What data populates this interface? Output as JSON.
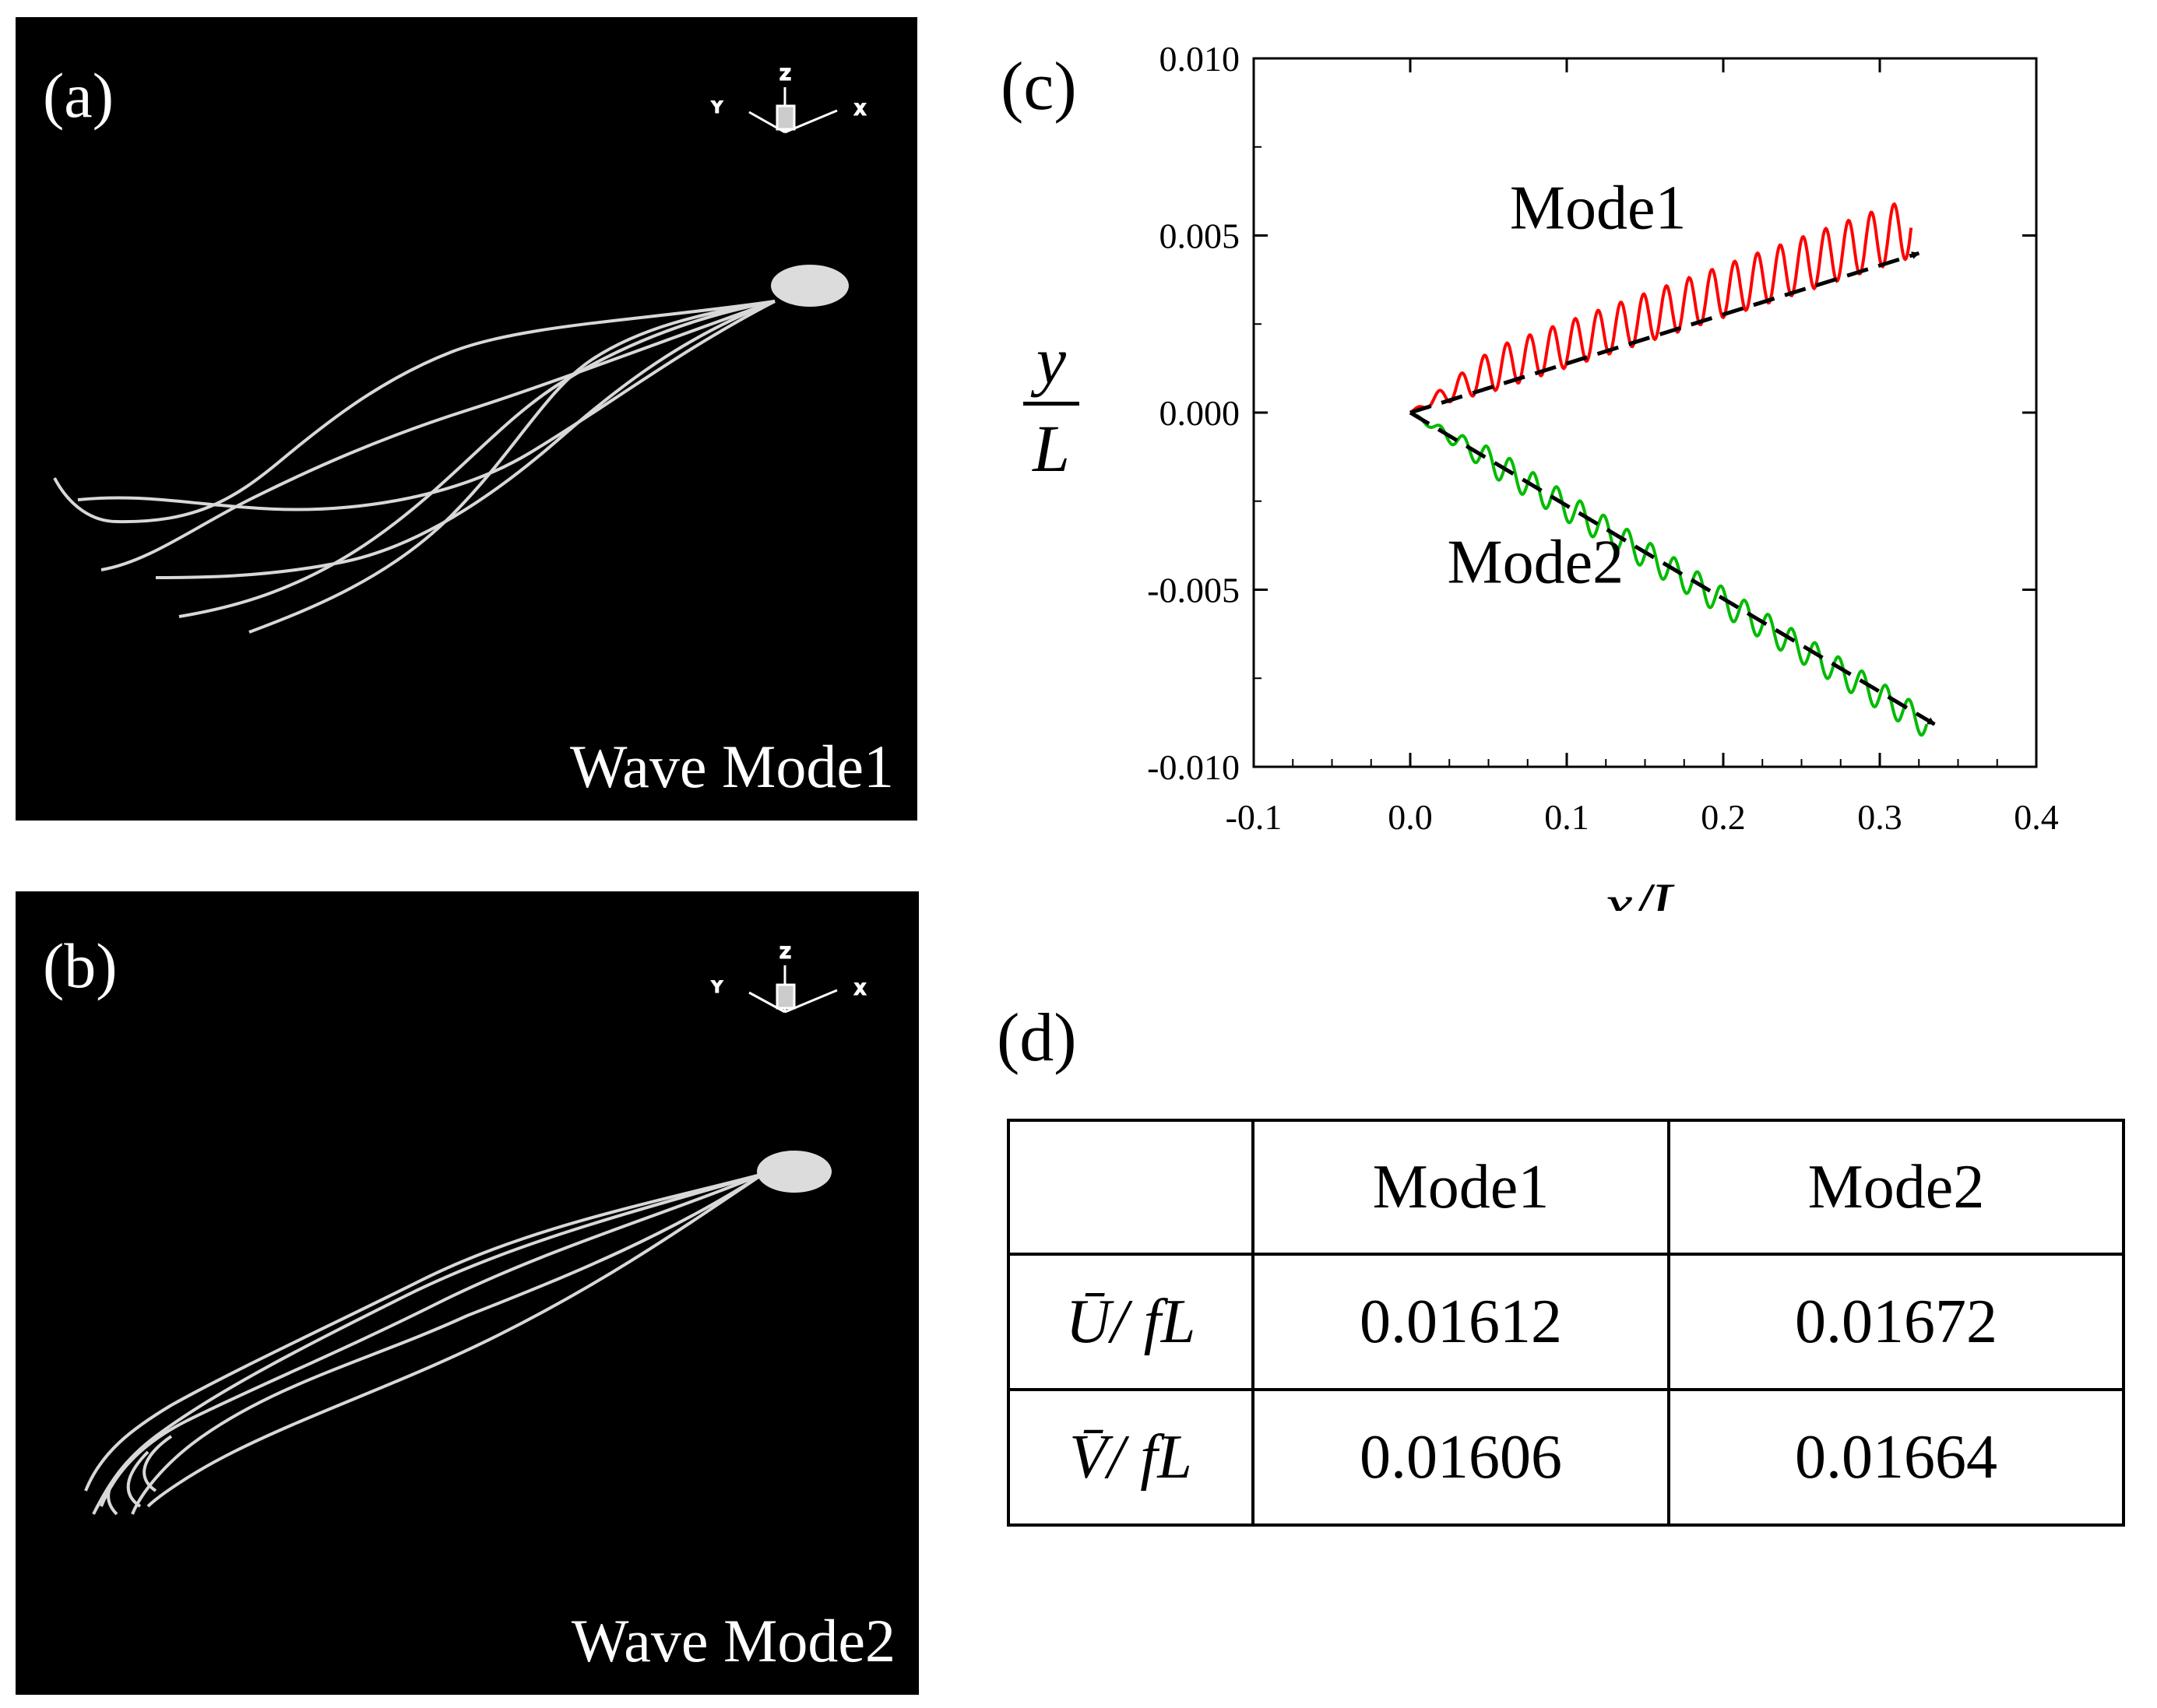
{
  "panel_a": {
    "label": "(a)",
    "caption": "Wave Mode1",
    "axes": {
      "z": "Z",
      "y": "Y",
      "x": "X"
    }
  },
  "panel_b": {
    "label": "(b)",
    "caption": "Wave Mode2",
    "axes": {
      "z": "Z",
      "y": "Y",
      "x": "X"
    }
  },
  "panel_c": {
    "label": "(c)",
    "ylabel_num": "y",
    "ylabel_den": "L"
  },
  "chart_data": {
    "type": "line",
    "xlabel": "x/L",
    "ylabel": "y/L",
    "xlim": [
      -0.1,
      0.4
    ],
    "ylim": [
      -0.01,
      0.01
    ],
    "xticks": [
      -0.1,
      0.0,
      0.1,
      0.2,
      0.3,
      0.4
    ],
    "xtick_labels": [
      "-0.1",
      "0.0",
      "0.1",
      "0.2",
      "0.3",
      "0.4"
    ],
    "yticks": [
      0.01,
      0.005,
      0.0,
      -0.005,
      -0.01
    ],
    "ytick_labels": [
      "0.010",
      "0.005",
      "0.000",
      "-0.005",
      "-0.010"
    ],
    "series": [
      {
        "name": "Mode1",
        "color": "#ff0000",
        "start": [
          0.0,
          0.0
        ],
        "end": [
          0.32,
          0.0048
        ],
        "oscillations": 22,
        "amplitude": 0.0007
      },
      {
        "name": "Mode2",
        "color": "#00bb00",
        "start": [
          0.0,
          0.0
        ],
        "end": [
          0.33,
          -0.0088
        ],
        "oscillations": 22,
        "amplitude": 0.0004
      }
    ],
    "arrows": [
      {
        "name": "Mode1 mean trajectory",
        "from": [
          0.0,
          0.0
        ],
        "to": [
          0.325,
          0.0045
        ],
        "style": "dashed"
      },
      {
        "name": "Mode2 mean trajectory",
        "from": [
          0.0,
          0.0
        ],
        "to": [
          0.335,
          -0.0088
        ],
        "style": "dashed"
      }
    ],
    "annotations": [
      {
        "text": "Mode1",
        "x": 0.12,
        "y": 0.0052
      },
      {
        "text": "Mode2",
        "x": 0.08,
        "y": -0.0048
      }
    ]
  },
  "panel_d": {
    "label": "(d)",
    "columns": [
      "",
      "Mode1",
      "Mode2"
    ],
    "rows": [
      {
        "label": "Ū/ fL",
        "values": [
          "0.01612",
          "0.01672"
        ]
      },
      {
        "label": "V̄/ fL",
        "values": [
          "0.01606",
          "0.01664"
        ]
      }
    ]
  }
}
